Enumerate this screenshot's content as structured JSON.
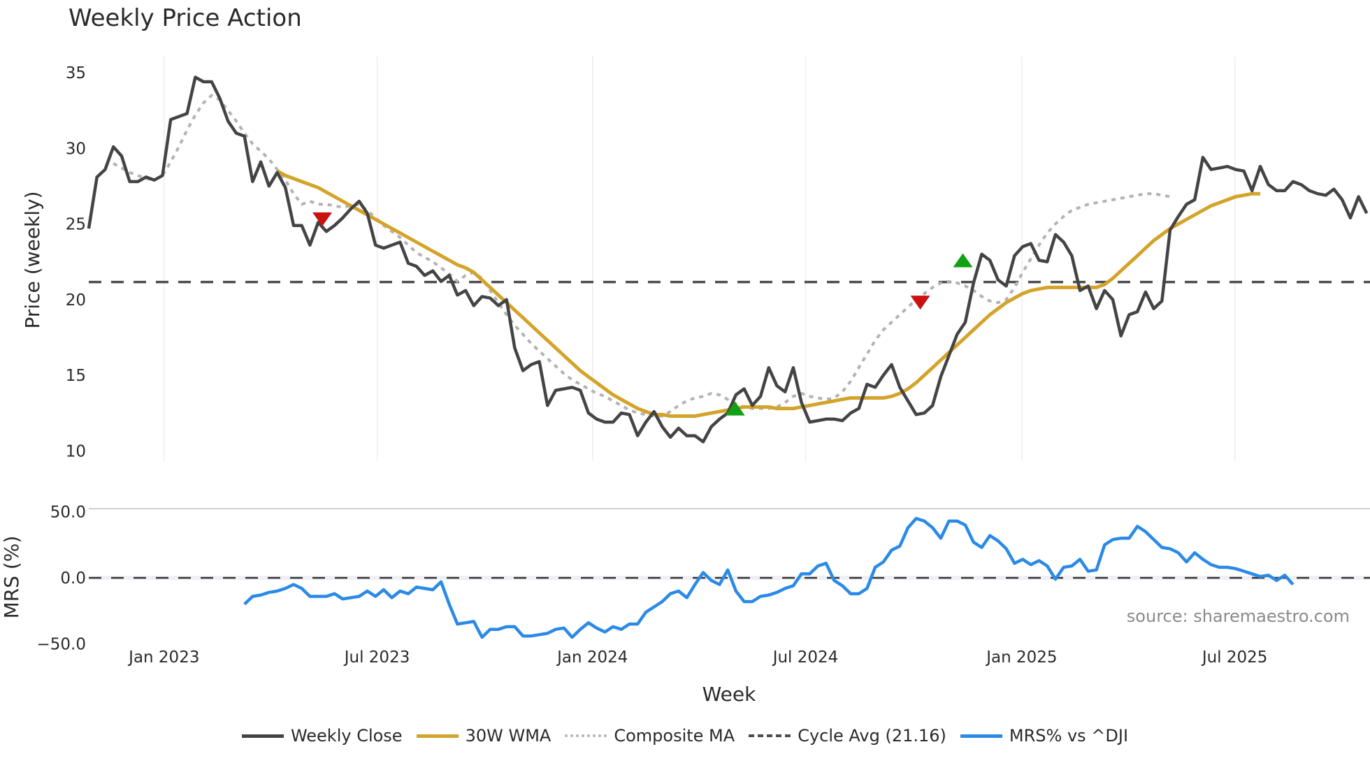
{
  "title": "Weekly Price Action",
  "source_label": "source: sharemaestro.com",
  "x_axis_title": "Week",
  "price_axis_title": "Price (weekly)",
  "mrs_axis_title": "MRS (%)",
  "price_ticks": [
    "35",
    "30",
    "25",
    "20",
    "15",
    "10"
  ],
  "mrs_ticks": [
    "50.0",
    "0.0",
    "−50.0"
  ],
  "x_ticks": [
    "Jan 2023",
    "Jul 2023",
    "Jan 2024",
    "Jul 2024",
    "Jan 2025",
    "Jul 2025"
  ],
  "colors": {
    "close": "#444444",
    "wma": "#d4a32a",
    "composite": "#b3b3b3",
    "cycle": "#4d4d4d",
    "mrs": "#2b8ae6",
    "sell_marker": "#cc1111",
    "buy_marker": "#14a014"
  },
  "legend": [
    {
      "label": "Weekly Close",
      "style": "solid",
      "color": "#444444"
    },
    {
      "label": "30W WMA",
      "style": "solid",
      "color": "#d4a32a"
    },
    {
      "label": "Composite MA",
      "style": "dotted",
      "color": "#b3b3b3"
    },
    {
      "label": "Cycle Avg (21.16)",
      "style": "dashed",
      "color": "#4d4d4d"
    },
    {
      "label": "MRS% vs ^DJI",
      "style": "solid",
      "color": "#2b8ae6"
    }
  ],
  "chart_data": [
    {
      "type": "line",
      "title": "Weekly Price Action",
      "xlabel": "Week",
      "ylabel": "Price (weekly)",
      "ylim": [
        9.3,
        36
      ],
      "x_ticks": [
        "Jan 2023",
        "Jul 2023",
        "Jan 2024",
        "Jul 2024",
        "Jan 2025",
        "Jul 2025"
      ],
      "x_start_week_index": 0,
      "x_tick_week_index": [
        9.2,
        35.2,
        61.5,
        87.5,
        113.9,
        139.9
      ],
      "grid": "vertical",
      "series": [
        {
          "name": "Weekly Close",
          "start": 0,
          "values": [
            24.7,
            28.1,
            28.6,
            30.1,
            29.5,
            27.8,
            27.8,
            28.1,
            27.9,
            28.2,
            31.9,
            32.1,
            32.3,
            34.7,
            34.4,
            34.4,
            33.3,
            31.8,
            31.0,
            30.8,
            27.8,
            29.1,
            27.5,
            28.4,
            27.4,
            24.9,
            24.9,
            23.6,
            25.1,
            24.5,
            24.9,
            25.4,
            26.0,
            26.5,
            25.7,
            23.6,
            23.4,
            23.6,
            23.8,
            22.4,
            22.2,
            21.6,
            21.9,
            21.2,
            21.6,
            20.3,
            20.6,
            19.6,
            20.2,
            20.1,
            19.6,
            20.0,
            16.8,
            15.3,
            15.7,
            15.9,
            13.0,
            14.0,
            14.1,
            14.2,
            14.0,
            12.5,
            12.1,
            11.9,
            11.9,
            12.5,
            12.4,
            11.0,
            11.9,
            12.6,
            11.6,
            10.9,
            11.5,
            11.0,
            11.0,
            10.6,
            11.6,
            12.1,
            12.5,
            13.7,
            14.1,
            13.0,
            13.6,
            15.5,
            14.3,
            13.9,
            15.5,
            13.2,
            11.9,
            12.0,
            12.1,
            12.1,
            12.0,
            12.5,
            12.8,
            14.4,
            14.2,
            15.0,
            15.7,
            14.2,
            13.3,
            12.4,
            12.5,
            13.0,
            14.9,
            16.3,
            17.7,
            18.5,
            21.1,
            23.0,
            22.6,
            21.3,
            20.9,
            22.9,
            23.5,
            23.7,
            22.6,
            22.5,
            24.3,
            23.8,
            22.9,
            20.6,
            20.9,
            19.4,
            20.6,
            20.0,
            17.6,
            19.0,
            19.2,
            20.5,
            19.4,
            19.9,
            24.6,
            25.5,
            26.3,
            26.6,
            29.4,
            28.6,
            28.7,
            28.8,
            28.6,
            28.5,
            27.2,
            28.8,
            27.6,
            27.2,
            27.2,
            27.8,
            27.6,
            27.2,
            27.0,
            26.9,
            27.3,
            26.6,
            25.4,
            26.8,
            25.7
          ]
        },
        {
          "name": "30W WMA",
          "start": 23,
          "values": [
            28.5,
            28.2,
            28.0,
            27.8,
            27.6,
            27.4,
            27.1,
            26.8,
            26.5,
            26.2,
            25.9,
            25.6,
            25.3,
            25.0,
            24.7,
            24.4,
            24.1,
            23.8,
            23.5,
            23.2,
            22.9,
            22.6,
            22.3,
            22.1,
            21.8,
            21.3,
            20.8,
            20.3,
            19.8,
            19.3,
            18.8,
            18.3,
            17.8,
            17.3,
            16.8,
            16.3,
            15.8,
            15.3,
            14.9,
            14.5,
            14.1,
            13.7,
            13.4,
            13.1,
            12.8,
            12.6,
            12.4,
            12.4,
            12.3,
            12.3,
            12.3,
            12.3,
            12.4,
            12.5,
            12.6,
            12.7,
            12.8,
            12.9,
            12.9,
            12.9,
            12.9,
            12.8,
            12.8,
            12.8,
            12.9,
            13.0,
            13.1,
            13.2,
            13.3,
            13.4,
            13.5,
            13.5,
            13.5,
            13.5,
            13.5,
            13.6,
            13.8,
            14.1,
            14.5,
            15.0,
            15.5,
            16.0,
            16.5,
            17.0,
            17.5,
            18.0,
            18.5,
            19.0,
            19.4,
            19.8,
            20.1,
            20.4,
            20.6,
            20.7,
            20.8,
            20.8,
            20.8,
            20.8,
            20.8,
            20.8,
            20.8,
            21.0,
            21.4,
            21.9,
            22.4,
            22.9,
            23.4,
            23.9,
            24.3,
            24.7,
            25.0,
            25.3,
            25.6,
            25.9,
            26.2,
            26.4,
            26.6,
            26.8,
            26.9,
            27.0,
            27.0
          ]
        },
        {
          "name": "Composite MA",
          "start": 3,
          "values": [
            29.0,
            28.7,
            28.4,
            28.2,
            28.0,
            27.9,
            28.2,
            29.1,
            30.1,
            31.2,
            32.2,
            33.0,
            33.5,
            33.2,
            32.5,
            31.8,
            31.0,
            30.3,
            29.8,
            29.3,
            28.6,
            27.9,
            27.0,
            26.3,
            26.5,
            26.3,
            26.3,
            26.2,
            26.1,
            26.2,
            26.3,
            25.9,
            25.4,
            24.9,
            24.5,
            24.1,
            23.6,
            23.1,
            22.8,
            22.5,
            22.1,
            21.7,
            21.2,
            21.6,
            21.8,
            21.4,
            20.6,
            19.8,
            19.0,
            18.3,
            17.7,
            17.1,
            16.6,
            16.1,
            15.6,
            15.1,
            14.7,
            14.4,
            14.1,
            13.8,
            13.6,
            13.3,
            13.0,
            12.7,
            12.5,
            12.4,
            12.3,
            12.3,
            12.6,
            13.0,
            13.3,
            13.5,
            13.6,
            13.8,
            13.7,
            13.4,
            13.1,
            12.9,
            12.8,
            12.8,
            12.8,
            12.9,
            13.2,
            13.6,
            13.8,
            13.6,
            13.5,
            13.4,
            13.5,
            13.9,
            14.6,
            15.5,
            16.4,
            17.3,
            18.0,
            18.5,
            19.0,
            19.5,
            20.0,
            20.4,
            20.8,
            21.1,
            21.2,
            21.1,
            20.9,
            20.6,
            20.2,
            19.9,
            19.8,
            20.0,
            20.8,
            21.8,
            22.7,
            23.6,
            24.4,
            25.0,
            25.5,
            25.9,
            26.1,
            26.3,
            26.4,
            26.5,
            26.6,
            26.7,
            26.8,
            26.9,
            27.0,
            27.0,
            26.9,
            26.8
          ]
        },
        {
          "name": "Cycle Avg (21.16)",
          "constant": 21.16
        },
        {
          "name": "Sell signals",
          "marker": "triangle-down",
          "points": [
            [
              28.5,
              25.3
            ],
            [
              101.5,
              19.8
            ]
          ]
        },
        {
          "name": "Buy signals",
          "marker": "triangle-up",
          "points": [
            [
              78.9,
              12.8
            ],
            [
              106.7,
              22.6
            ]
          ]
        }
      ]
    },
    {
      "type": "line",
      "ylabel": "MRS (%)",
      "ylim": [
        -52,
        55
      ],
      "series": [
        {
          "name": "MRS% vs ^DJI",
          "start": 19,
          "values": [
            -20,
            -14,
            -13,
            -11,
            -10,
            -8,
            -5,
            -8,
            -14,
            -14,
            -14,
            -12,
            -16,
            -15,
            -14,
            -10,
            -14,
            -9,
            -15,
            -10,
            -12,
            -7,
            -8,
            -9,
            -3,
            -20,
            -35,
            -34,
            -33,
            -45,
            -39,
            -39,
            -37,
            -37,
            -44,
            -44,
            -43,
            -42,
            -39,
            -38,
            -45,
            -39,
            -34,
            -38,
            -41,
            -37,
            -39,
            -35,
            -35,
            -26,
            -22,
            -18,
            -12,
            -10,
            -15,
            -5,
            4,
            -2,
            -5,
            6,
            -10,
            -18,
            -18,
            -14,
            -13,
            -11,
            -8,
            -6,
            3,
            3,
            9,
            11,
            -2,
            -6,
            -12,
            -12,
            -8,
            8,
            12,
            21,
            24,
            38,
            45,
            43,
            38,
            30,
            43,
            43,
            40,
            27,
            23,
            32,
            28,
            22,
            11,
            14,
            10,
            13,
            9,
            -1,
            8,
            9,
            14,
            5,
            6,
            25,
            29,
            30,
            30,
            39,
            35,
            29,
            23,
            22,
            19,
            12,
            19,
            14,
            10,
            8,
            8,
            7,
            5,
            3,
            1,
            2,
            -2,
            2,
            -5
          ]
        }
      ]
    }
  ]
}
